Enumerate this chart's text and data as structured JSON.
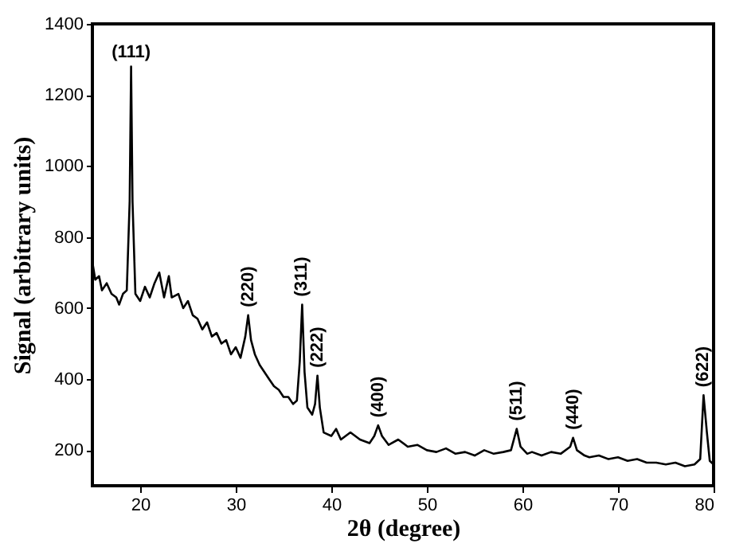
{
  "chart_data": {
    "type": "line",
    "xlabel": "2θ (degree)",
    "ylabel": "Signal (arbitrary units)",
    "xlim": [
      15,
      80
    ],
    "ylim": [
      100,
      1400
    ],
    "xticks": [
      20,
      30,
      40,
      50,
      60,
      70,
      80
    ],
    "yticks": [
      200,
      400,
      600,
      800,
      1000,
      1200,
      1400
    ],
    "marker": "none",
    "line_style": "solid",
    "series": [
      {
        "color": "#000000",
        "x": [
          15,
          15.3,
          15.7,
          16,
          16.5,
          17,
          17.5,
          17.8,
          18.2,
          18.6,
          18.9,
          19.05,
          19.2,
          19.5,
          20,
          20.5,
          21,
          21.5,
          22,
          22.5,
          23,
          23.3,
          24,
          24.5,
          25,
          25.5,
          26,
          26.5,
          27,
          27.5,
          28,
          28.5,
          29,
          29.5,
          30,
          30.5,
          31,
          31.3,
          31.6,
          32,
          32.5,
          33,
          33.5,
          34,
          34.5,
          35,
          35.5,
          36,
          36.4,
          36.7,
          36.95,
          37.2,
          37.5,
          38,
          38.3,
          38.55,
          38.8,
          39.2,
          40,
          40.5,
          41,
          42,
          43,
          44,
          44.5,
          44.9,
          45.3,
          46,
          47,
          48,
          49,
          50,
          51,
          52,
          53,
          54,
          55,
          56,
          57,
          58,
          58.8,
          59.4,
          59.8,
          60.5,
          61,
          62,
          63,
          64,
          65,
          65.3,
          65.7,
          66.5,
          67,
          68,
          69,
          70,
          71,
          72,
          73,
          74,
          75,
          76,
          77,
          78,
          78.6,
          78.95,
          79.3,
          79.6,
          80
        ],
        "values": [
          730,
          680,
          690,
          650,
          670,
          640,
          630,
          610,
          640,
          650,
          900,
          1280,
          900,
          640,
          620,
          660,
          630,
          670,
          700,
          630,
          690,
          630,
          640,
          600,
          620,
          580,
          570,
          540,
          560,
          520,
          530,
          500,
          510,
          470,
          490,
          460,
          520,
          580,
          510,
          470,
          440,
          420,
          400,
          380,
          370,
          350,
          350,
          330,
          340,
          450,
          610,
          420,
          320,
          300,
          330,
          410,
          320,
          250,
          240,
          260,
          230,
          250,
          230,
          220,
          240,
          270,
          240,
          215,
          230,
          210,
          215,
          200,
          195,
          205,
          190,
          195,
          185,
          200,
          190,
          195,
          200,
          260,
          210,
          190,
          195,
          185,
          195,
          190,
          210,
          235,
          200,
          185,
          180,
          185,
          175,
          180,
          170,
          175,
          165,
          165,
          160,
          165,
          155,
          160,
          175,
          355,
          250,
          170,
          160
        ]
      }
    ],
    "annotations": [
      {
        "text": "(111)",
        "x": 19.05,
        "y": 1280
      },
      {
        "text": "(220)",
        "x": 31.3,
        "y": 580
      },
      {
        "text": "(311)",
        "x": 36.95,
        "y": 610
      },
      {
        "text": "(222)",
        "x": 38.55,
        "y": 410
      },
      {
        "text": "(400)",
        "x": 44.9,
        "y": 270
      },
      {
        "text": "(511)",
        "x": 59.4,
        "y": 260
      },
      {
        "text": "(440)",
        "x": 65.3,
        "y": 235
      },
      {
        "text": "(622)",
        "x": 78.95,
        "y": 355
      }
    ]
  }
}
